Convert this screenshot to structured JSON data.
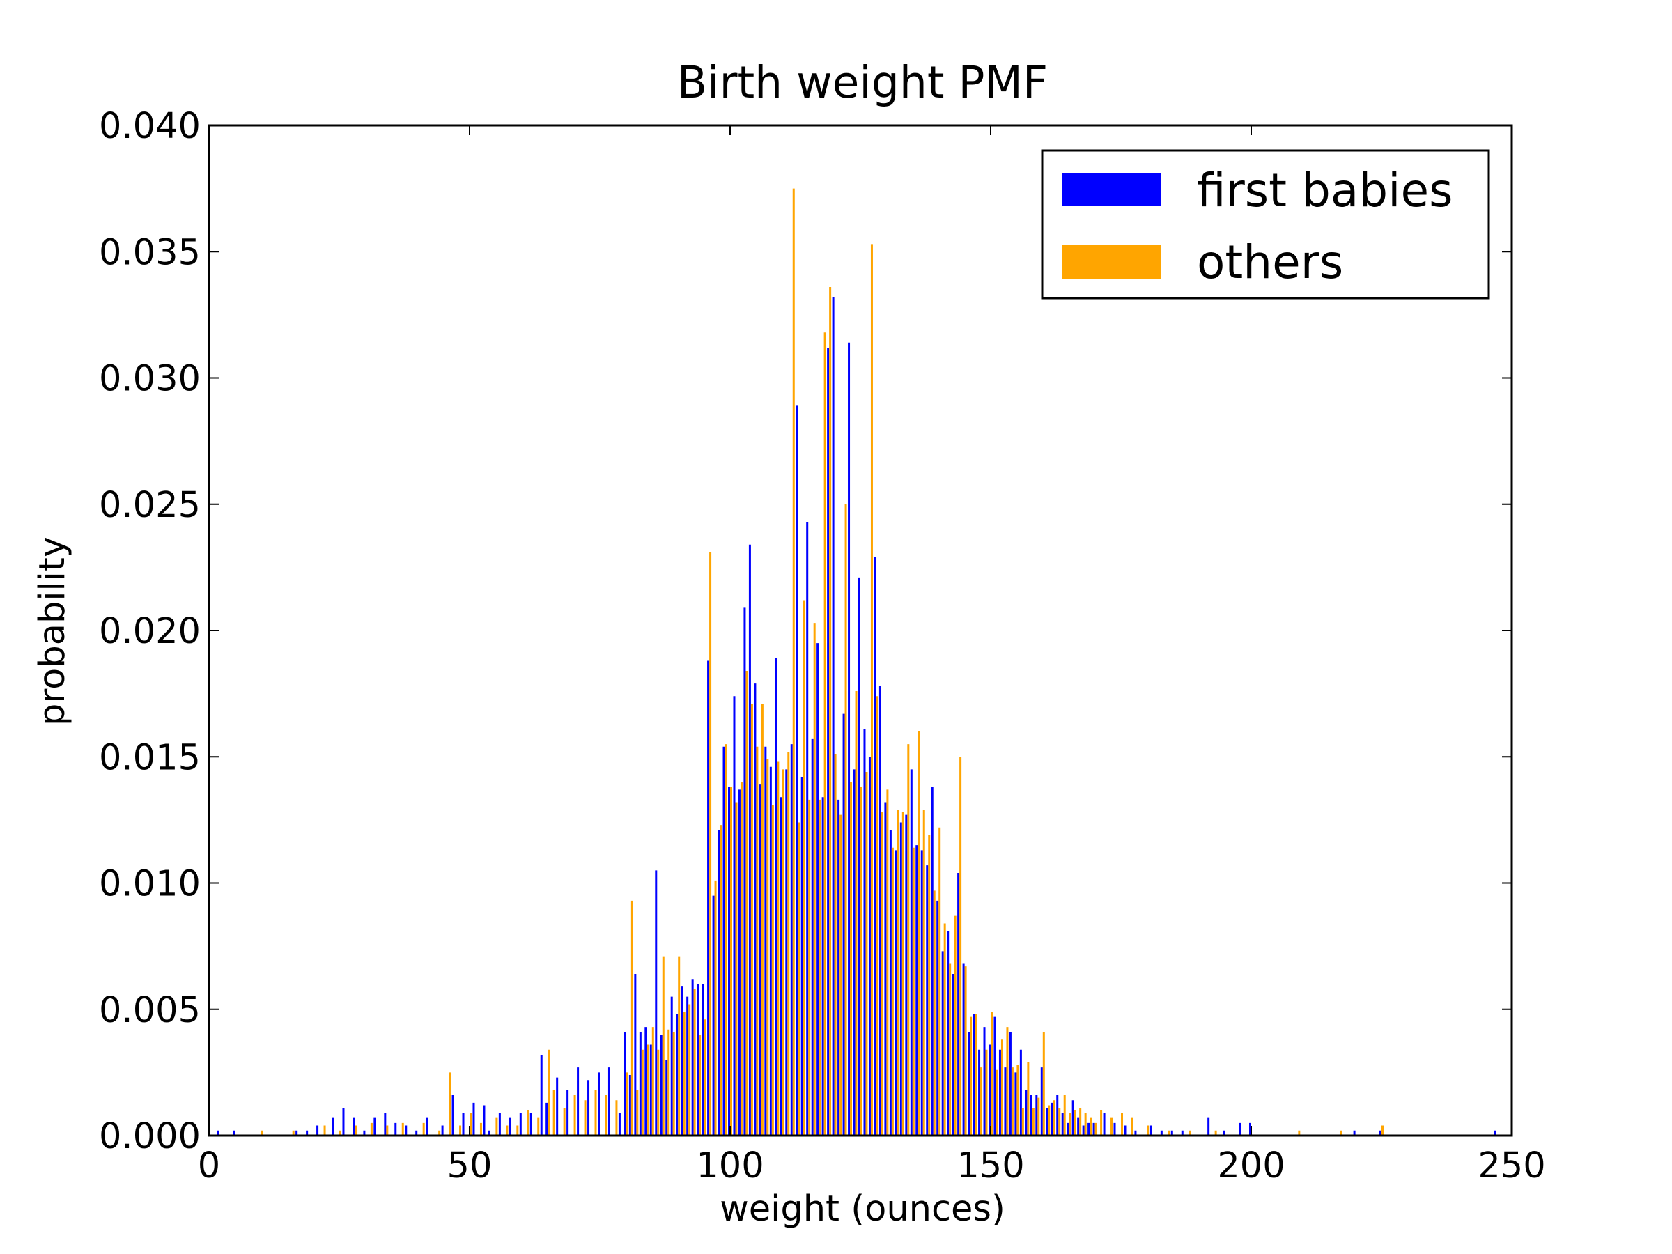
{
  "chart_data": {
    "type": "bar",
    "title": "Birth weight PMF",
    "xlabel": "weight (ounces)",
    "ylabel": "probability",
    "xlim": [
      0,
      250
    ],
    "ylim": [
      0,
      0.04
    ],
    "x_ticks": [
      0,
      50,
      100,
      150,
      200,
      250
    ],
    "x_tick_labels": [
      "0",
      "50",
      "100",
      "150",
      "200",
      "250"
    ],
    "y_ticks": [
      0,
      0.005,
      0.01,
      0.015,
      0.02,
      0.025,
      0.03,
      0.035,
      0.04
    ],
    "y_tick_labels": [
      "0.000",
      "0.005",
      "0.010",
      "0.015",
      "0.020",
      "0.025",
      "0.030",
      "0.035",
      "0.040"
    ],
    "legend_position": "top-right",
    "series": [
      {
        "name": "first babies",
        "color": "#0000ff",
        "x": [
          2,
          5,
          17,
          19,
          21,
          24,
          26,
          28,
          30,
          32,
          34,
          36,
          38,
          40,
          42,
          45,
          47,
          49,
          51,
          53,
          54,
          56,
          58,
          60,
          62,
          64,
          65,
          67,
          69,
          71,
          73,
          75,
          77,
          79,
          80,
          81,
          82,
          83,
          84,
          85,
          86,
          87,
          88,
          89,
          90,
          91,
          92,
          93,
          94,
          95,
          96,
          97,
          98,
          99,
          100,
          101,
          102,
          103,
          104,
          105,
          106,
          107,
          108,
          109,
          110,
          111,
          112,
          113,
          114,
          115,
          116,
          117,
          118,
          119,
          120,
          121,
          122,
          123,
          124,
          125,
          126,
          127,
          128,
          129,
          130,
          131,
          132,
          133,
          134,
          135,
          136,
          137,
          138,
          139,
          140,
          141,
          142,
          143,
          144,
          145,
          146,
          147,
          148,
          149,
          150,
          151,
          152,
          153,
          154,
          155,
          156,
          157,
          158,
          159,
          160,
          161,
          162,
          163,
          164,
          165,
          166,
          167,
          168,
          169,
          170,
          172,
          174,
          176,
          178,
          181,
          183,
          185,
          187,
          192,
          195,
          198,
          200,
          220,
          225,
          247
        ],
        "values": [
          0.0002,
          0.0002,
          0.0002,
          0.0002,
          0.0004,
          0.0007,
          0.0011,
          0.0007,
          0.0002,
          0.0007,
          0.0009,
          0.0005,
          0.0004,
          0.0002,
          0.0007,
          0.0004,
          0.0016,
          0.0009,
          0.0013,
          0.0012,
          0.0002,
          0.0009,
          0.0007,
          0.0009,
          0.0009,
          0.0032,
          0.0013,
          0.0023,
          0.0018,
          0.0027,
          0.0022,
          0.0025,
          0.0027,
          0.0009,
          0.0041,
          0.0024,
          0.0064,
          0.0041,
          0.0043,
          0.0036,
          0.0105,
          0.004,
          0.003,
          0.0055,
          0.0048,
          0.0059,
          0.0055,
          0.0062,
          0.006,
          0.006,
          0.0188,
          0.0095,
          0.0121,
          0.0154,
          0.0138,
          0.0174,
          0.0137,
          0.0209,
          0.0234,
          0.0179,
          0.0139,
          0.0154,
          0.0146,
          0.0189,
          0.0134,
          0.0145,
          0.0155,
          0.0289,
          0.0142,
          0.0243,
          0.0157,
          0.0195,
          0.0134,
          0.0312,
          0.0332,
          0.0133,
          0.0167,
          0.0314,
          0.0145,
          0.0221,
          0.0161,
          0.015,
          0.0229,
          0.0178,
          0.0132,
          0.0121,
          0.0113,
          0.0124,
          0.0127,
          0.0145,
          0.0115,
          0.0113,
          0.0107,
          0.0138,
          0.0093,
          0.0073,
          0.0081,
          0.0064,
          0.0104,
          0.0068,
          0.0041,
          0.0048,
          0.0034,
          0.0043,
          0.0036,
          0.0047,
          0.0034,
          0.0027,
          0.0041,
          0.0025,
          0.0034,
          0.0018,
          0.0016,
          0.0016,
          0.0027,
          0.0011,
          0.0013,
          0.0016,
          0.0009,
          0.0005,
          0.0014,
          0.0007,
          0.0004,
          0.0005,
          0.0005,
          0.0009,
          0.0005,
          0.0004,
          0.0002,
          0.0004,
          0.0002,
          0.0002,
          0.0002,
          0.0007,
          0.0002,
          0.0005,
          0.0005,
          0.0002,
          0.0002,
          0.0002
        ]
      },
      {
        "name": "others",
        "color": "#ffa500",
        "x": [
          10,
          16,
          22,
          25,
          28,
          31,
          34,
          37,
          41,
          44,
          46,
          48,
          50,
          52,
          55,
          57,
          59,
          61,
          63,
          65,
          66,
          68,
          70,
          72,
          74,
          76,
          78,
          80,
          81,
          82,
          83,
          84,
          85,
          86,
          87,
          88,
          89,
          90,
          91,
          92,
          93,
          94,
          95,
          96,
          97,
          98,
          99,
          100,
          101,
          102,
          103,
          104,
          105,
          106,
          107,
          108,
          109,
          110,
          111,
          112,
          113,
          114,
          115,
          116,
          117,
          118,
          119,
          120,
          121,
          122,
          123,
          124,
          125,
          126,
          127,
          128,
          129,
          130,
          131,
          132,
          133,
          134,
          135,
          136,
          137,
          138,
          139,
          140,
          141,
          142,
          143,
          144,
          145,
          146,
          147,
          148,
          149,
          150,
          151,
          152,
          153,
          154,
          155,
          156,
          157,
          158,
          159,
          160,
          161,
          162,
          163,
          164,
          165,
          166,
          167,
          168,
          169,
          170,
          171,
          173,
          175,
          177,
          180,
          184,
          188,
          193,
          209,
          217,
          225
        ],
        "values": [
          0.0002,
          0.0002,
          0.0004,
          0.0002,
          0.0004,
          0.0005,
          0.0004,
          0.0005,
          0.0005,
          0.0002,
          0.0025,
          0.0004,
          0.0009,
          0.0005,
          0.0007,
          0.0004,
          0.0004,
          0.001,
          0.0007,
          0.0034,
          0.0018,
          0.0011,
          0.0016,
          0.0014,
          0.0018,
          0.0016,
          0.0014,
          0.0025,
          0.0093,
          0.0018,
          0.0034,
          0.0036,
          0.0043,
          0.0034,
          0.0071,
          0.0042,
          0.0041,
          0.0071,
          0.0049,
          0.0052,
          0.0058,
          0.004,
          0.0046,
          0.0231,
          0.0101,
          0.0123,
          0.0155,
          0.0138,
          0.0132,
          0.014,
          0.0184,
          0.0171,
          0.0154,
          0.0171,
          0.0149,
          0.0131,
          0.0148,
          0.0145,
          0.0152,
          0.0375,
          0.0124,
          0.0212,
          0.0133,
          0.0203,
          0.0133,
          0.0318,
          0.0336,
          0.0151,
          0.0127,
          0.025,
          0.014,
          0.0176,
          0.0138,
          0.0144,
          0.0353,
          0.0174,
          0.0128,
          0.0137,
          0.0114,
          0.0129,
          0.0128,
          0.0155,
          0.0114,
          0.016,
          0.0129,
          0.0119,
          0.0097,
          0.0122,
          0.0084,
          0.0068,
          0.0087,
          0.015,
          0.0067,
          0.0047,
          0.0048,
          0.0027,
          0.0034,
          0.0049,
          0.0026,
          0.0038,
          0.0043,
          0.0027,
          0.0028,
          0.0011,
          0.0029,
          0.0011,
          0.0015,
          0.0041,
          0.0012,
          0.0014,
          0.0011,
          0.0016,
          0.0009,
          0.001,
          0.0011,
          0.0009,
          0.0007,
          0.0005,
          0.001,
          0.0007,
          0.0009,
          0.0007,
          0.0004,
          0.0002,
          0.0002,
          0.0002,
          0.0002,
          0.0002,
          0.0004
        ]
      }
    ]
  }
}
